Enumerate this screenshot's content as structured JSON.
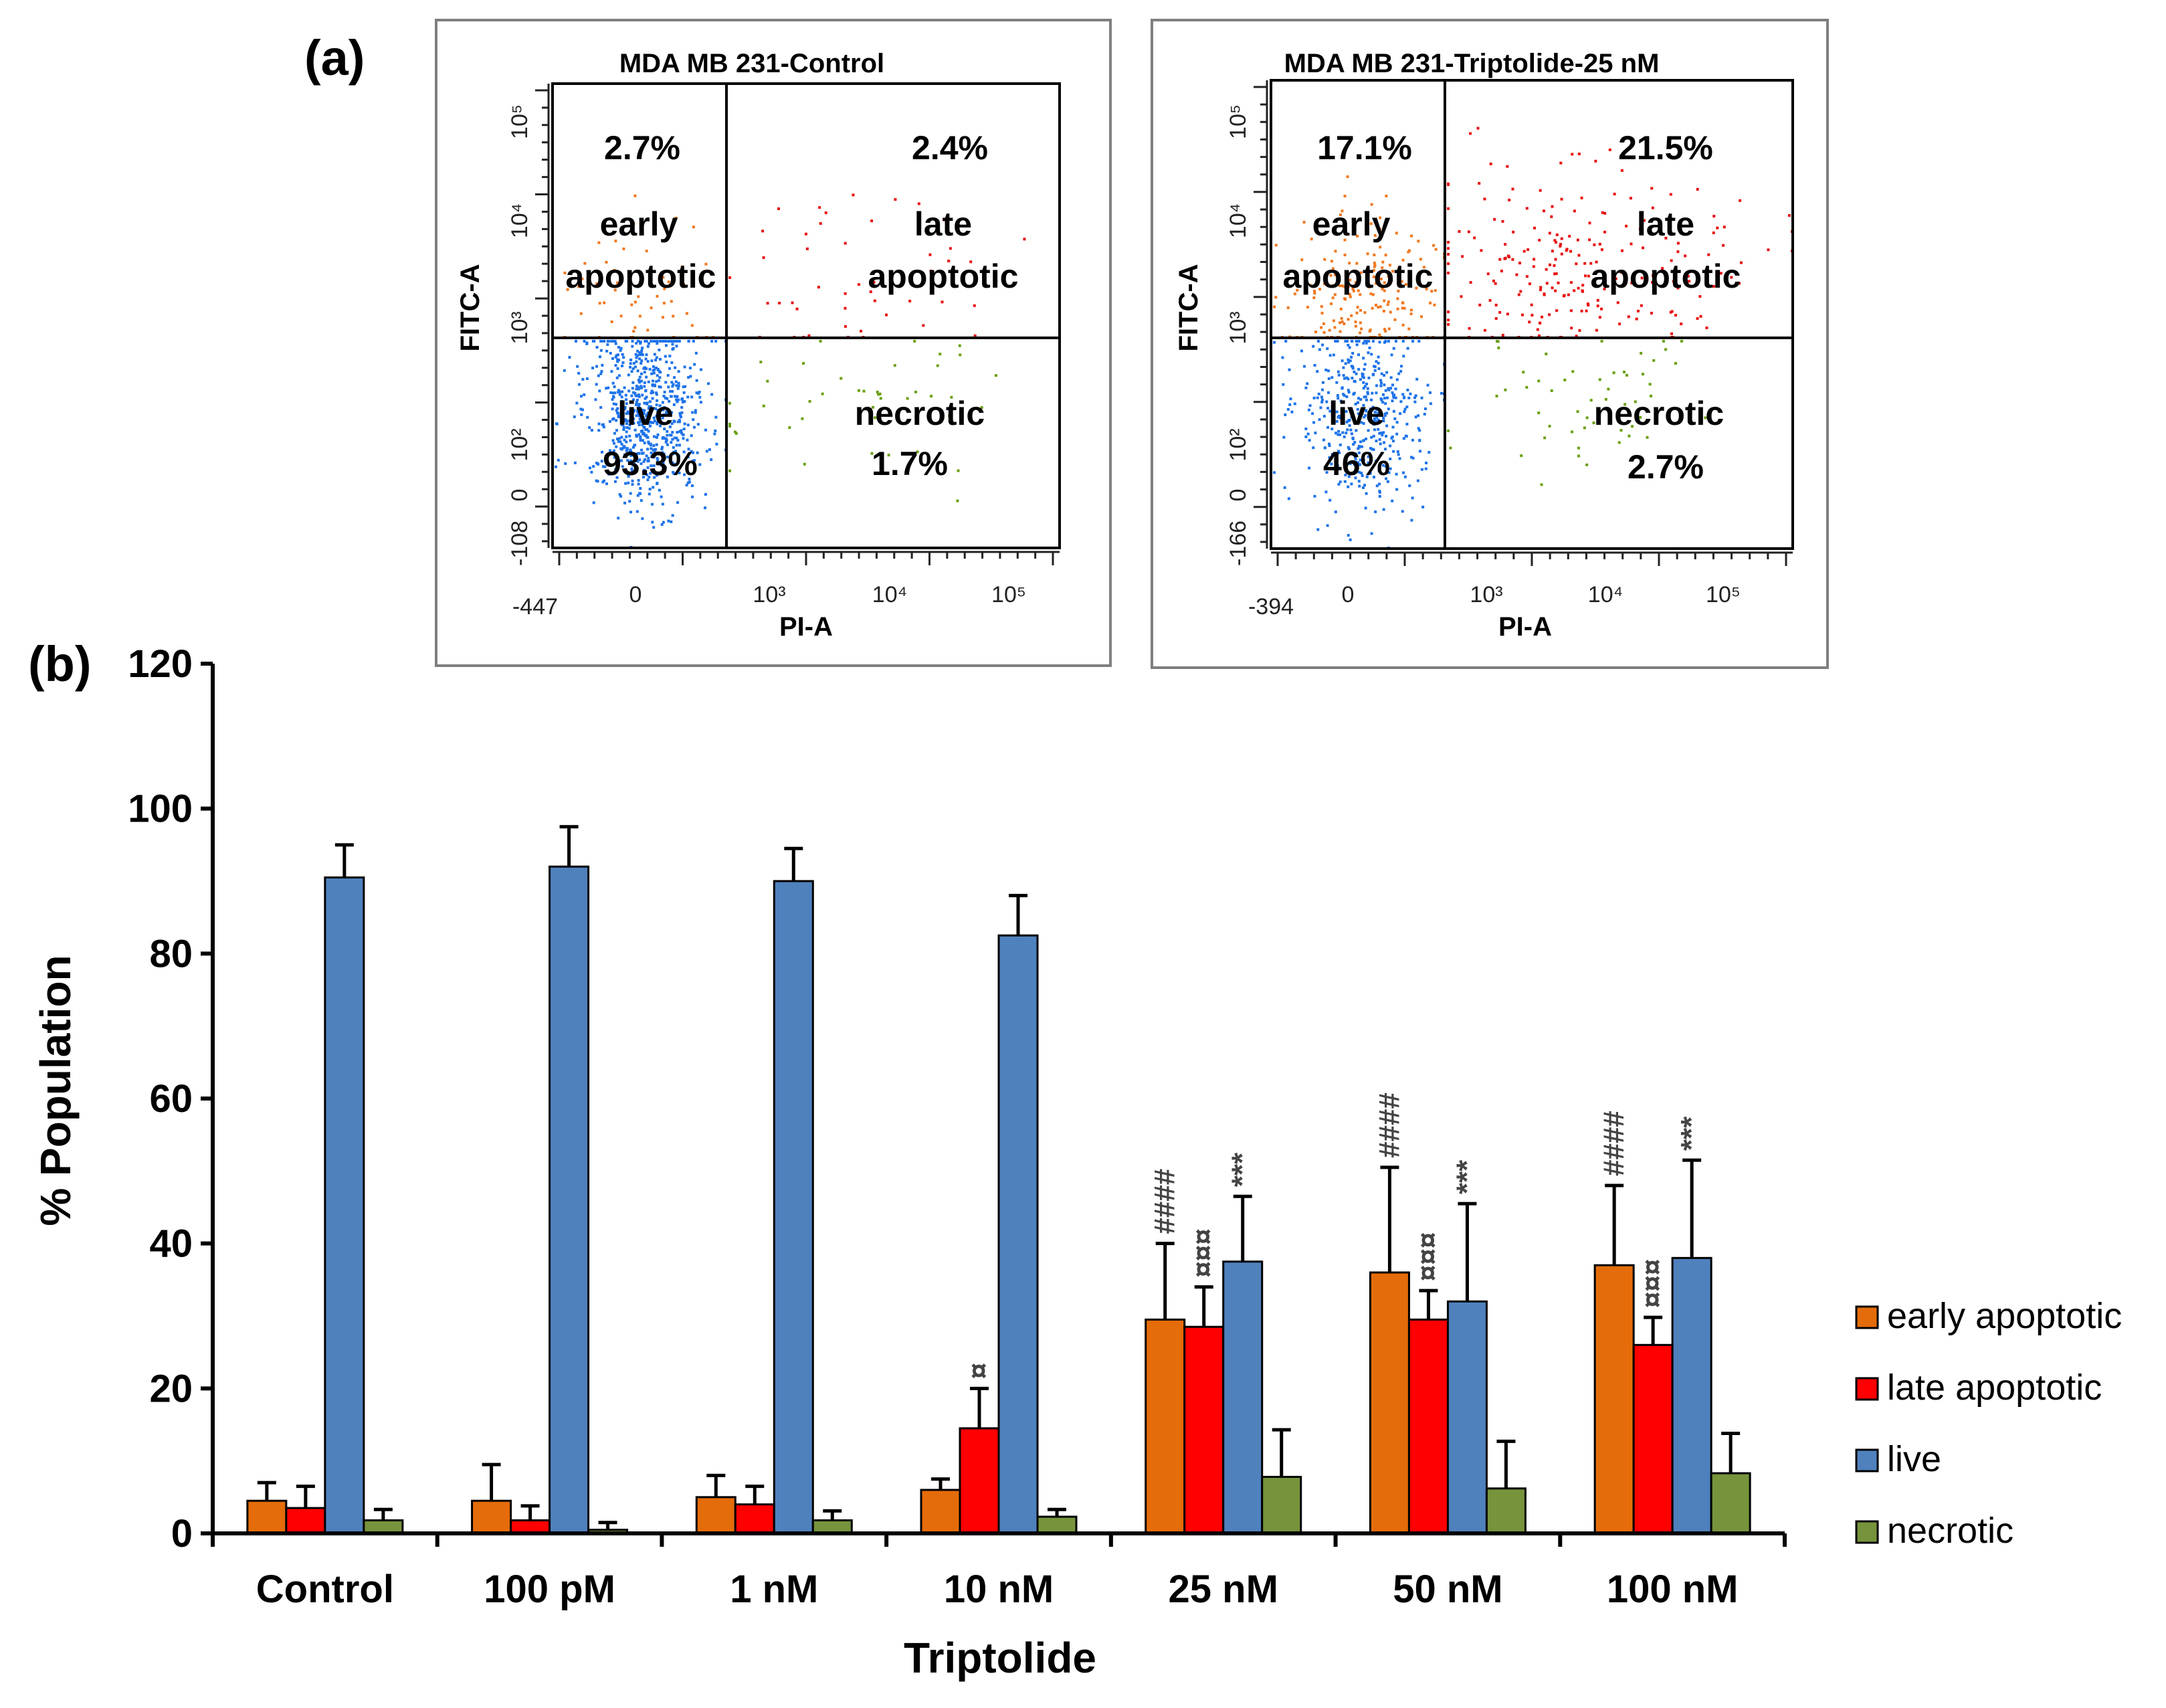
{
  "figure": {
    "label_a": "(a)",
    "label_b": "(b)"
  },
  "flow_panels": [
    {
      "title": "MDA MB 231-Control",
      "y_axis_label": "FITC-A",
      "x_axis_label": "PI-A",
      "x_ticks": [
        "-447",
        "0",
        "10³",
        "10⁴",
        "10⁵"
      ],
      "y_ticks": [
        "-108",
        "0",
        "10²",
        "10³",
        "10⁴",
        "10⁵"
      ],
      "q_early": {
        "name": "early apoptotic",
        "l1": "early",
        "l2": "apoptotic",
        "pct": "2.7%"
      },
      "q_late": {
        "name": "late apoptotic",
        "l1": "late",
        "l2": "apoptotic",
        "pct": "2.4%"
      },
      "q_live": {
        "name": "live",
        "pct": "93.3%"
      },
      "q_necrotic": {
        "name": "necrotic",
        "pct": "1.7%"
      }
    },
    {
      "title": "MDA MB 231-Triptolide-25 nM",
      "y_axis_label": "FITC-A",
      "x_axis_label": "PI-A",
      "x_ticks": [
        "-394",
        "0",
        "10³",
        "10⁴",
        "10⁵"
      ],
      "y_ticks": [
        "-166",
        "0",
        "10²",
        "10³",
        "10⁴",
        "10⁵"
      ],
      "q_early": {
        "name": "early apoptotic",
        "l1": "early",
        "l2": "apoptotic",
        "pct": "17.1%"
      },
      "q_late": {
        "name": "late apoptotic",
        "l1": "late",
        "l2": "apoptotic",
        "pct": "21.5%"
      },
      "q_live": {
        "name": "live",
        "pct": "46%"
      },
      "q_necrotic": {
        "name": "necrotic",
        "pct": "2.7%"
      }
    }
  ],
  "chart_data": {
    "type": "bar",
    "title": "",
    "xlabel": "Triptolide",
    "ylabel": "% Population",
    "ylim": [
      0,
      120
    ],
    "yticks": [
      0,
      20,
      40,
      60,
      80,
      100,
      120
    ],
    "categories": [
      "Control",
      "100 pM",
      "1 nM",
      "10 nM",
      "25 nM",
      "50 nM",
      "100 nM"
    ],
    "series": [
      {
        "name": "early apoptotic",
        "color": "#E46C0A",
        "values": [
          4.5,
          4.5,
          5,
          6,
          29.5,
          36,
          37
        ],
        "errors": [
          2.5,
          5,
          3,
          1.5,
          10.5,
          14.5,
          11
        ]
      },
      {
        "name": "late apoptotic",
        "color": "#FF0000",
        "values": [
          3.5,
          1.8,
          4,
          14.5,
          28.5,
          29.5,
          26
        ],
        "errors": [
          3,
          2,
          2.5,
          5.5,
          5.5,
          4,
          3.8
        ]
      },
      {
        "name": "live",
        "color": "#4F81BD",
        "values": [
          90.5,
          92,
          90,
          82.5,
          37.5,
          32,
          38
        ],
        "errors": [
          4.5,
          5.5,
          4.5,
          5.5,
          9,
          13.5,
          13.5
        ]
      },
      {
        "name": "necrotic",
        "color": "#77933C",
        "values": [
          1.8,
          0.5,
          1.8,
          2.3,
          7.8,
          6.2,
          8.3
        ],
        "errors": [
          1.5,
          1,
          1.3,
          1,
          6.5,
          6.5,
          5.5
        ]
      }
    ],
    "annotations": [
      {
        "category": "10 nM",
        "series": "late apoptotic",
        "text": "¤"
      },
      {
        "category": "25 nM",
        "series": "early apoptotic",
        "text": "####"
      },
      {
        "category": "25 nM",
        "series": "late apoptotic",
        "text": "¤¤¤"
      },
      {
        "category": "25 nM",
        "series": "live",
        "text": "***"
      },
      {
        "category": "50 nM",
        "series": "early apoptotic",
        "text": "####"
      },
      {
        "category": "50 nM",
        "series": "late apoptotic",
        "text": "¤¤¤"
      },
      {
        "category": "50 nM",
        "series": "live",
        "text": "***"
      },
      {
        "category": "100 nM",
        "series": "early apoptotic",
        "text": "####"
      },
      {
        "category": "100 nM",
        "series": "late apoptotic",
        "text": "¤¤¤"
      },
      {
        "category": "100 nM",
        "series": "live",
        "text": "***"
      }
    ],
    "legend_position": "right"
  }
}
